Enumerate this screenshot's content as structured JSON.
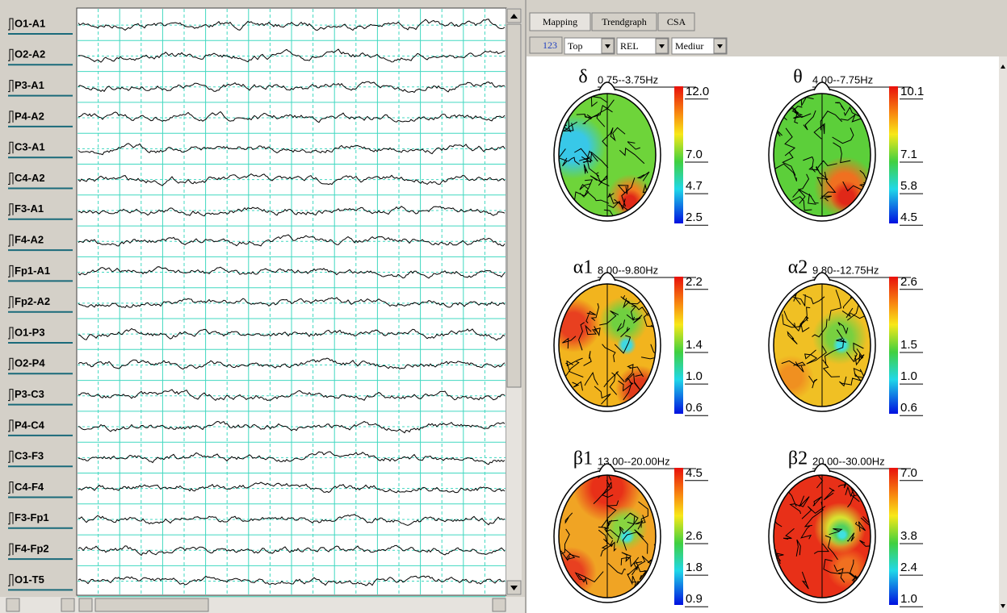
{
  "channels": [
    "O1-A1",
    "O2-A2",
    "P3-A1",
    "P4-A2",
    "C3-A1",
    "C4-A2",
    "F3-A1",
    "F4-A2",
    "Fp1-A1",
    "Fp2-A2",
    "O1-P3",
    "O2-P4",
    "P3-C3",
    "P4-C4",
    "C3-F3",
    "C4-F4",
    "F3-Fp1",
    "F4-Fp2",
    "O1-T5"
  ],
  "tabs": [
    "Mapping",
    "Trendgraph",
    "CSA"
  ],
  "toolbar": {
    "icon_label": "123",
    "dropdowns": [
      "Top",
      "REL",
      "Mediur"
    ]
  },
  "maps": [
    {
      "symbol": "δ",
      "range": "0.75--3.75Hz",
      "scale": [
        "12.0",
        "7.0",
        "4.7",
        "2.5"
      ]
    },
    {
      "symbol": "θ",
      "range": "4.00--7.75Hz",
      "scale": [
        "10.1",
        "7.1",
        "5.8",
        "4.5"
      ]
    },
    {
      "symbol": "α1",
      "range": "8.00--9.80Hz",
      "scale": [
        "2.2",
        "1.4",
        "1.0",
        "0.6"
      ]
    },
    {
      "symbol": "α2",
      "range": "9.80--12.75Hz",
      "scale": [
        "2.6",
        "1.5",
        "1.0",
        "0.6"
      ]
    },
    {
      "symbol": "β1",
      "range": "13.00--20.00Hz",
      "scale": [
        "4.5",
        "2.6",
        "1.8",
        "0.9"
      ]
    },
    {
      "symbol": "β2",
      "range": "20.00--30.00Hz",
      "scale": [
        "7.0",
        "3.8",
        "2.4",
        "1.0"
      ]
    }
  ]
}
